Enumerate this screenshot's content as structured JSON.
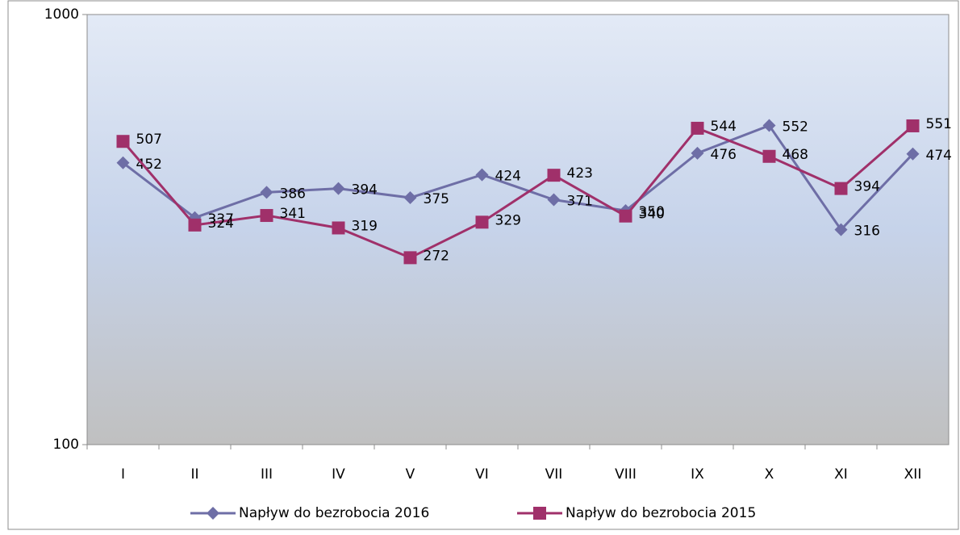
{
  "chart_data": {
    "type": "line",
    "categories": [
      "I",
      "II",
      "III",
      "IV",
      "V",
      "VI",
      "VII",
      "VIII",
      "IX",
      "X",
      "XI",
      "XII"
    ],
    "series": [
      {
        "name": "Napływ do bezrobocia 2016",
        "color": "#6e6ea6",
        "marker": "diamond",
        "values": [
          452,
          337,
          386,
          394,
          375,
          424,
          371,
          350,
          476,
          552,
          316,
          474
        ]
      },
      {
        "name": "Napływ do bezrobocia 2015",
        "color": "#a0306a",
        "marker": "square",
        "values": [
          507,
          324,
          341,
          319,
          272,
          329,
          423,
          340,
          544,
          468,
          394,
          551
        ]
      }
    ],
    "log_scale": true,
    "ylim": [
      100,
      1000
    ],
    "yticks": [
      100,
      1000
    ],
    "legend": "bottom"
  }
}
